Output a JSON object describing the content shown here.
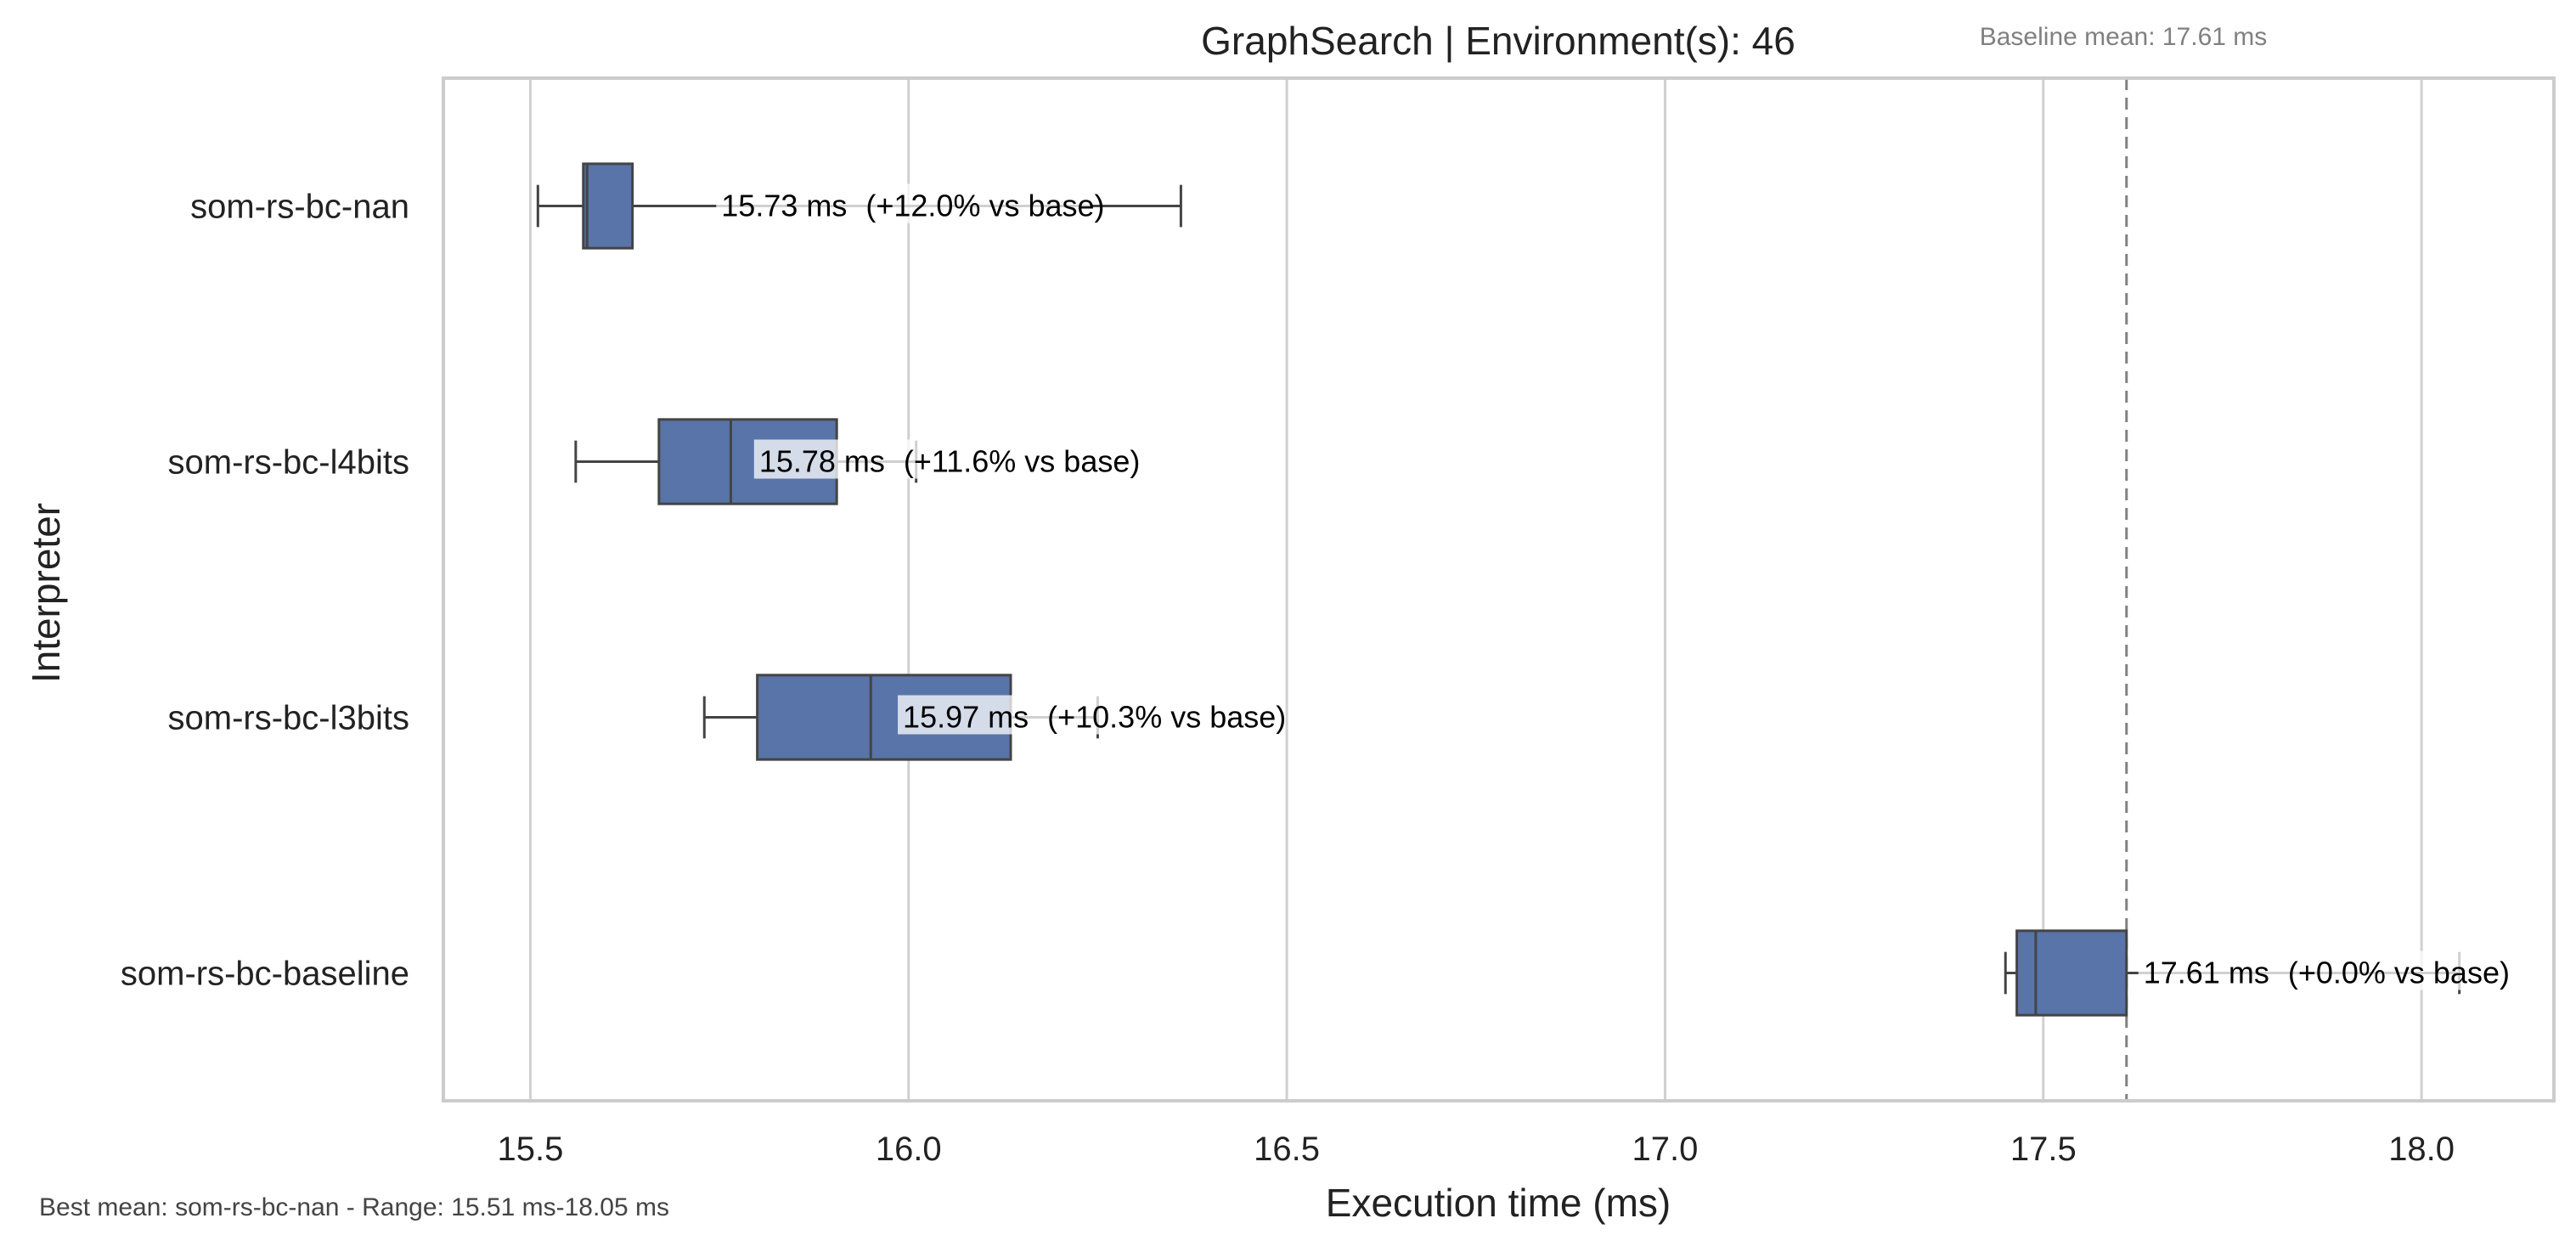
{
  "chart_data": {
    "type": "box",
    "orientation": "horizontal",
    "title": "GraphSearch | Environment(s): 46",
    "xlabel": "Execution time (ms)",
    "ylabel": "Interpreter",
    "xlim": [
      15.385,
      18.175
    ],
    "xticks": [
      "15.5",
      "16.0",
      "16.5",
      "17.0",
      "17.5",
      "18.0"
    ],
    "grid": "vertical",
    "box_color": "#5874A8",
    "categories": [
      "som-rs-bc-nan",
      "som-rs-bc-l4bits",
      "som-rs-bc-l3bits",
      "som-rs-bc-baseline"
    ],
    "boxes": [
      {
        "name": "som-rs-bc-nan",
        "whisker_low": 15.51,
        "q1": 15.57,
        "median": 15.575,
        "q3": 15.635,
        "whisker_high": 16.36,
        "mean_label": "15.73 ms",
        "delta_label": "(+12.0% vs base)"
      },
      {
        "name": "som-rs-bc-l4bits",
        "whisker_low": 15.56,
        "q1": 15.67,
        "median": 15.765,
        "q3": 15.905,
        "whisker_high": 16.01,
        "mean_label": "15.78 ms",
        "delta_label": "(+11.6% vs base)"
      },
      {
        "name": "som-rs-bc-l3bits",
        "whisker_low": 15.73,
        "q1": 15.8,
        "median": 15.95,
        "q3": 16.135,
        "whisker_high": 16.25,
        "mean_label": "15.97 ms",
        "delta_label": "(+10.3% vs base)"
      },
      {
        "name": "som-rs-bc-baseline",
        "whisker_low": 17.45,
        "q1": 17.465,
        "median": 17.49,
        "q3": 17.61,
        "whisker_high": 18.05,
        "mean_label": "17.61 ms",
        "delta_label": "(+0.0% vs base)"
      }
    ],
    "baseline_mean": 17.61,
    "baseline_label": "Baseline mean: 17.61 ms"
  },
  "footer": {
    "note": "Best mean: som-rs-bc-nan - Range: 15.51 ms-18.05 ms"
  }
}
